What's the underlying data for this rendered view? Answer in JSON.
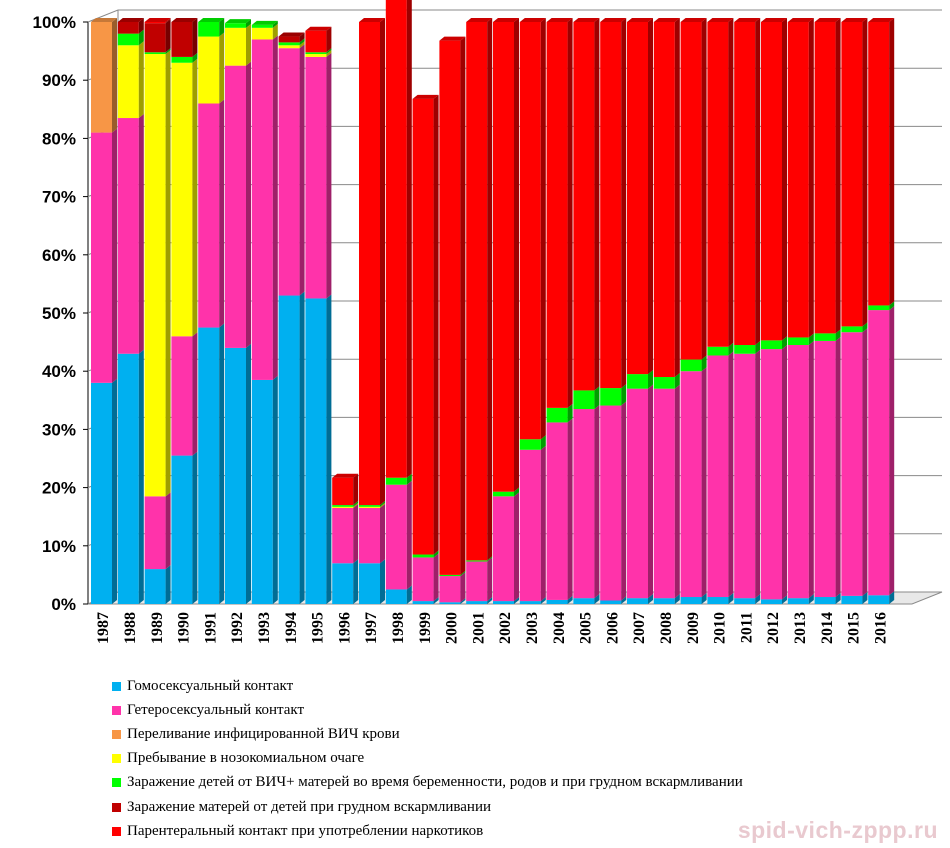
{
  "chart_data": {
    "type": "bar",
    "stacked": true,
    "percent": true,
    "categories": [
      "1987",
      "1988",
      "1989",
      "1990",
      "1991",
      "1992",
      "1993",
      "1994",
      "1995",
      "1996",
      "1997",
      "1998",
      "1999",
      "2000",
      "2001",
      "2002",
      "2003",
      "2004",
      "2005",
      "2006",
      "2007",
      "2008",
      "2009",
      "2010",
      "2011",
      "2012",
      "2013",
      "2014",
      "2015",
      "2016"
    ],
    "y_ticks": [
      "0%",
      "10%",
      "20%",
      "30%",
      "40%",
      "50%",
      "60%",
      "70%",
      "80%",
      "90%",
      "100%"
    ],
    "ylim": [
      0,
      100
    ],
    "grid": true,
    "legend_position": "bottom",
    "series": [
      {
        "name": "Гомосексуальный контакт",
        "color": "#00b0f0",
        "values": [
          38,
          43,
          6,
          25.5,
          47.5,
          44,
          38.5,
          53,
          52.5,
          7,
          7,
          2.5,
          0.5,
          0.3,
          0.5,
          0.5,
          0.5,
          0.7,
          1,
          0.6,
          1,
          1,
          1.2,
          1.2,
          1,
          0.8,
          1,
          1.2,
          1.4,
          1.5
        ]
      },
      {
        "name": "Гетеросексуальный контакт",
        "color": "#ff33aa",
        "values": [
          43,
          40.5,
          12.5,
          20.5,
          38.5,
          48.5,
          58.5,
          42.5,
          41.5,
          9.5,
          9.5,
          18,
          7.5,
          4.5,
          6.8,
          18,
          26,
          30.5,
          32.5,
          33.5,
          36,
          36,
          38.8,
          41.5,
          42,
          43,
          43.5,
          44,
          45.3,
          49
        ]
      },
      {
        "name": "Переливание  инфицированной ВИЧ крови",
        "color": "#f79646",
        "values": [
          19,
          0,
          0,
          0,
          0,
          0,
          0,
          0,
          0,
          0,
          0,
          0,
          0,
          0,
          0,
          0,
          0,
          0,
          0,
          0,
          0,
          0,
          0,
          0,
          0,
          0,
          0,
          0,
          0,
          0
        ]
      },
      {
        "name": "Пребывание в нозокомиальном очаге",
        "color": "#ffff00",
        "values": [
          0,
          12.5,
          76,
          47,
          11.5,
          6.5,
          2,
          0.5,
          0.5,
          0.2,
          0.2,
          0,
          0,
          0,
          0,
          0,
          0,
          0,
          0,
          0,
          0,
          0,
          0,
          0,
          0,
          0,
          0,
          0,
          0,
          0
        ]
      },
      {
        "name": "Заражение детей от ВИЧ+ матерей во время беременности, родов и при грудном вскармливании",
        "color": "#00ff00",
        "values": [
          0,
          2,
          0.3,
          1,
          2.5,
          0.8,
          0.5,
          0.5,
          0.3,
          0.3,
          0.3,
          1.2,
          0.5,
          0.2,
          0.2,
          0.8,
          1.8,
          2.5,
          3.2,
          3,
          2.5,
          2,
          2,
          1.5,
          1.5,
          1.5,
          1.3,
          1.3,
          1,
          0.8
        ]
      },
      {
        "name": "Заражение матерей от детей при грудном вскармливании",
        "color": "#c00000",
        "values": [
          0,
          2,
          5,
          6,
          0,
          0,
          0,
          1,
          0,
          0,
          0,
          0,
          0,
          0,
          0,
          0,
          0,
          0,
          0,
          0,
          0,
          0,
          0,
          0,
          0,
          0,
          0,
          0,
          0,
          0
        ]
      },
      {
        "name": "Парентеральный контакт при употреблении наркотиков",
        "color": "#ff0000",
        "values": [
          0,
          0,
          0.2,
          0,
          0,
          0,
          0,
          0,
          3.7,
          4.7,
          83,
          83.3,
          78.3,
          91.8,
          92.5,
          80.7,
          71.7,
          66.3,
          63.3,
          62.9,
          60.5,
          61,
          58,
          55.8,
          55.5,
          54.7,
          54.2,
          53.5,
          52.3,
          48.7
        ]
      }
    ]
  },
  "watermark": "spid-vich-zppp.ru"
}
